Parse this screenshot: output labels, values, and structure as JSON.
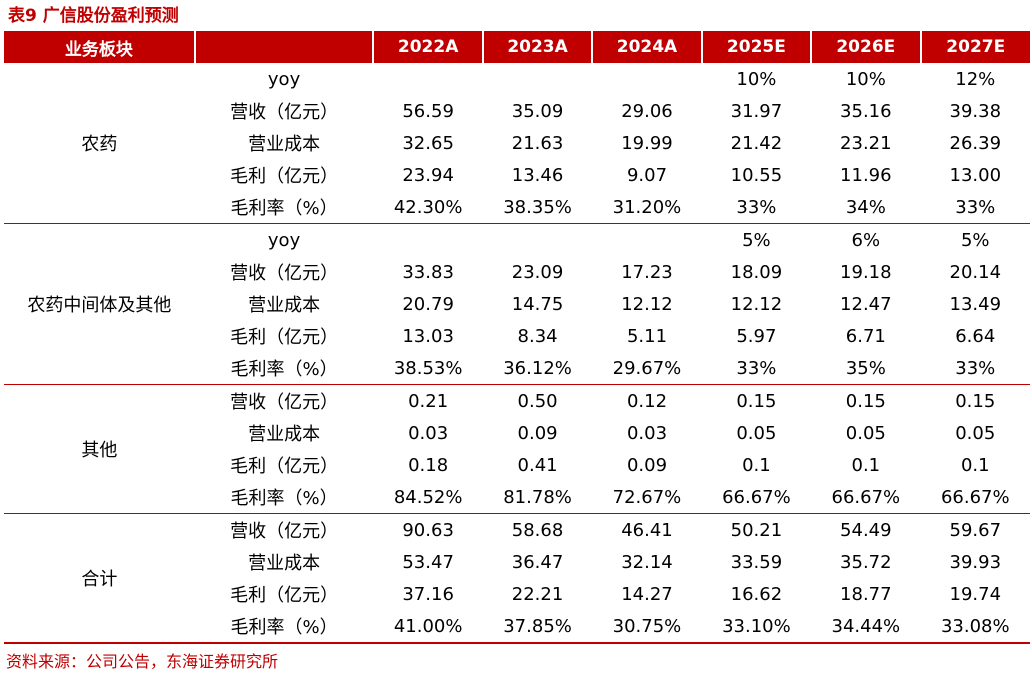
{
  "title": "表9  广信股份盈利预测",
  "header": {
    "segment_label": "业务板块",
    "item_label": "",
    "years": [
      "2022A",
      "2023A",
      "2024A",
      "2025E",
      "2026E",
      "2027E"
    ]
  },
  "groups": [
    {
      "segment": "农药",
      "rows": [
        {
          "item": "yoy",
          "values": [
            "",
            "",
            "",
            "10%",
            "10%",
            "12%"
          ]
        },
        {
          "item": "营收（亿元）",
          "values": [
            "56.59",
            "35.09",
            "29.06",
            "31.97",
            "35.16",
            "39.38"
          ]
        },
        {
          "item": "营业成本",
          "values": [
            "32.65",
            "21.63",
            "19.99",
            "21.42",
            "23.21",
            "26.39"
          ]
        },
        {
          "item": "毛利（亿元）",
          "values": [
            "23.94",
            "13.46",
            "9.07",
            "10.55",
            "11.96",
            "13.00"
          ]
        },
        {
          "item": "毛利率（%）",
          "values": [
            "42.30%",
            "38.35%",
            "31.20%",
            "33%",
            "34%",
            "33%"
          ]
        }
      ]
    },
    {
      "segment": "农药中间体及其他",
      "rows": [
        {
          "item": "yoy",
          "values": [
            "",
            "",
            "",
            "5%",
            "6%",
            "5%"
          ]
        },
        {
          "item": "营收（亿元）",
          "values": [
            "33.83",
            "23.09",
            "17.23",
            "18.09",
            "19.18",
            "20.14"
          ]
        },
        {
          "item": "营业成本",
          "values": [
            "20.79",
            "14.75",
            "12.12",
            "12.12",
            "12.47",
            "13.49"
          ]
        },
        {
          "item": "毛利（亿元）",
          "values": [
            "13.03",
            "8.34",
            "5.11",
            "5.97",
            "6.71",
            "6.64"
          ]
        },
        {
          "item": "毛利率（%）",
          "values": [
            "38.53%",
            "36.12%",
            "29.67%",
            "33%",
            "35%",
            "33%"
          ]
        }
      ]
    },
    {
      "segment": "其他",
      "rows": [
        {
          "item": "营收（亿元）",
          "values": [
            "0.21",
            "0.50",
            "0.12",
            "0.15",
            "0.15",
            "0.15"
          ]
        },
        {
          "item": "营业成本",
          "values": [
            "0.03",
            "0.09",
            "0.03",
            "0.05",
            "0.05",
            "0.05"
          ]
        },
        {
          "item": "毛利（亿元）",
          "values": [
            "0.18",
            "0.41",
            "0.09",
            "0.1",
            "0.1",
            "0.1"
          ]
        },
        {
          "item": "毛利率（%）",
          "values": [
            "84.52%",
            "81.78%",
            "72.67%",
            "66.67%",
            "66.67%",
            "66.67%"
          ]
        }
      ]
    },
    {
      "segment": "合计",
      "rows": [
        {
          "item": "营收（亿元）",
          "values": [
            "90.63",
            "58.68",
            "46.41",
            "50.21",
            "54.49",
            "59.67"
          ]
        },
        {
          "item": "营业成本",
          "values": [
            "53.47",
            "36.47",
            "32.14",
            "33.59",
            "35.72",
            "39.93"
          ]
        },
        {
          "item": "毛利（亿元）",
          "values": [
            "37.16",
            "22.21",
            "14.27",
            "16.62",
            "18.77",
            "19.74"
          ]
        },
        {
          "item": "毛利率（%）",
          "values": [
            "41.00%",
            "37.85%",
            "30.75%",
            "33.10%",
            "34.44%",
            "33.08%"
          ]
        }
      ]
    }
  ],
  "source": "资料来源：公司公告，东海证券研究所",
  "colors": {
    "accent": "#c00000",
    "header_text": "#ffffff"
  }
}
